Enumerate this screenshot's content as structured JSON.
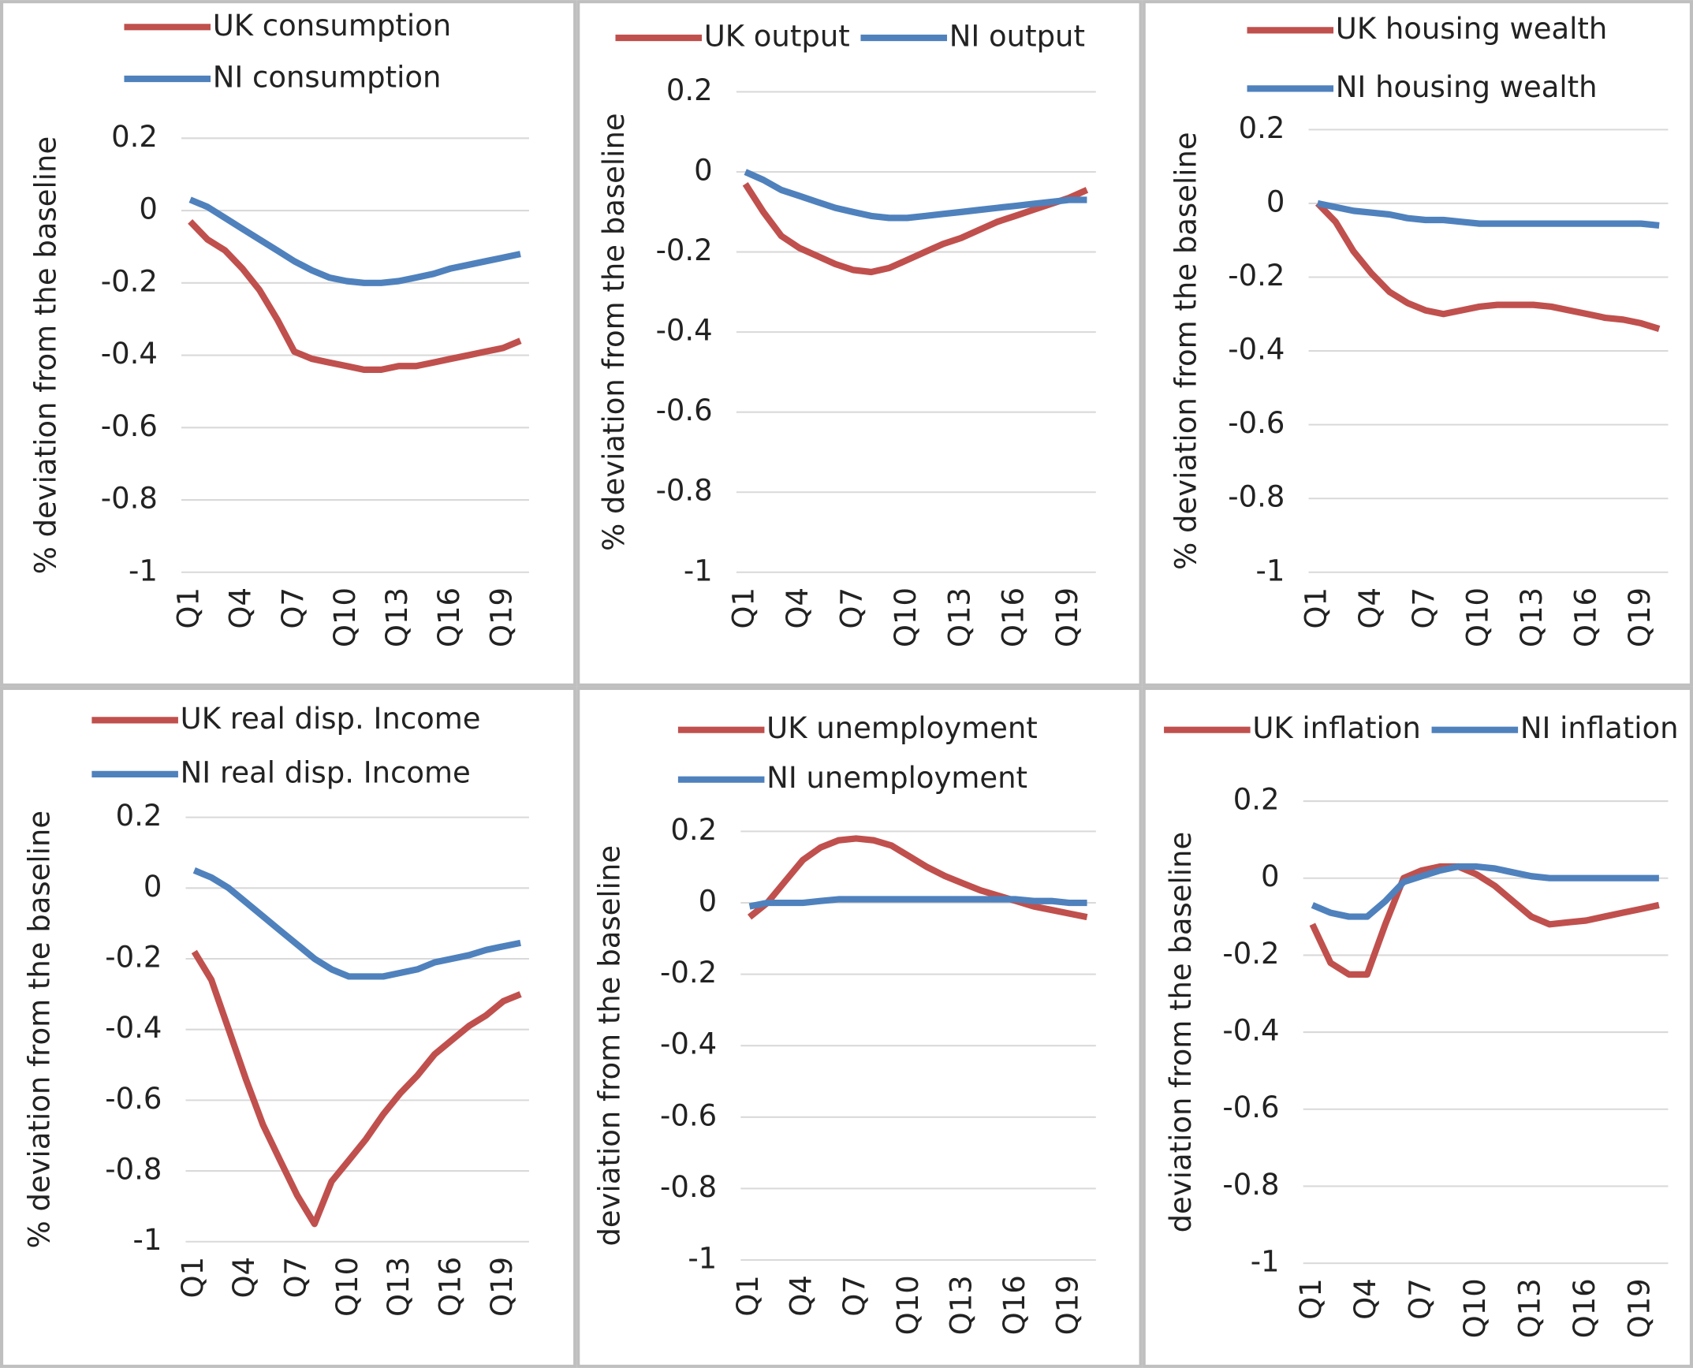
{
  "chart_data": [
    {
      "type": "line",
      "y_label": "% deviation from the baseline",
      "categories": [
        "Q1",
        null,
        null,
        "Q4",
        null,
        null,
        "Q7",
        null,
        null,
        "Q10",
        null,
        null,
        "Q13",
        null,
        null,
        "Q16",
        null,
        null,
        "Q19",
        null
      ],
      "series": [
        {
          "name": "UK consumption",
          "color": "#c0504d",
          "values": [
            -0.03,
            -0.08,
            -0.11,
            -0.16,
            -0.22,
            -0.3,
            -0.39,
            -0.41,
            -0.42,
            -0.43,
            -0.44,
            -0.44,
            -0.43,
            -0.43,
            -0.42,
            -0.41,
            -0.4,
            -0.39,
            -0.38,
            -0.36
          ]
        },
        {
          "name": "NI consumption",
          "color": "#4f81bd",
          "values": [
            0.03,
            0.01,
            -0.02,
            -0.05,
            -0.08,
            -0.11,
            -0.14,
            -0.165,
            -0.185,
            -0.195,
            -0.2,
            -0.2,
            -0.195,
            -0.185,
            -0.175,
            -0.16,
            -0.15,
            -0.14,
            -0.13,
            -0.12
          ]
        }
      ],
      "ylim": [
        -1,
        0.2
      ],
      "yticks": [
        -1,
        -0.8,
        -0.6,
        -0.4,
        -0.2,
        0,
        0.2
      ],
      "grid": true
    },
    {
      "type": "line",
      "y_label": "% deviation from the baseline",
      "categories": [
        "Q1",
        null,
        null,
        "Q4",
        null,
        null,
        "Q7",
        null,
        null,
        "Q10",
        null,
        null,
        "Q13",
        null,
        null,
        "Q16",
        null,
        null,
        "Q19",
        null
      ],
      "series": [
        {
          "name": "UK output",
          "color": "#c0504d",
          "values": [
            -0.03,
            -0.1,
            -0.16,
            -0.19,
            -0.21,
            -0.23,
            -0.245,
            -0.25,
            -0.24,
            -0.22,
            -0.2,
            -0.18,
            -0.165,
            -0.145,
            -0.125,
            -0.11,
            -0.095,
            -0.08,
            -0.065,
            -0.045
          ]
        },
        {
          "name": "NI output",
          "color": "#4f81bd",
          "values": [
            0,
            -0.02,
            -0.045,
            -0.06,
            -0.075,
            -0.09,
            -0.1,
            -0.11,
            -0.115,
            -0.115,
            -0.11,
            -0.105,
            -0.1,
            -0.095,
            -0.09,
            -0.085,
            -0.08,
            -0.075,
            -0.07,
            -0.07
          ]
        }
      ],
      "ylim": [
        -1,
        0.2
      ],
      "yticks": [
        -1,
        -0.8,
        -0.6,
        -0.4,
        -0.2,
        0,
        0.2
      ],
      "grid": true
    },
    {
      "type": "line",
      "y_label": "% deviation from the baseline",
      "categories": [
        "Q1",
        null,
        null,
        "Q4",
        null,
        null,
        "Q7",
        null,
        null,
        "Q10",
        null,
        null,
        "Q13",
        null,
        null,
        "Q16",
        null,
        null,
        "Q19",
        null
      ],
      "series": [
        {
          "name": "UK housing wealth",
          "color": "#c0504d",
          "values": [
            0,
            -0.05,
            -0.13,
            -0.19,
            -0.24,
            -0.27,
            -0.29,
            -0.3,
            -0.29,
            -0.28,
            -0.275,
            -0.275,
            -0.275,
            -0.28,
            -0.29,
            -0.3,
            -0.31,
            -0.315,
            -0.325,
            -0.34
          ]
        },
        {
          "name": "NI housing wealth",
          "color": "#4f81bd",
          "values": [
            0,
            -0.01,
            -0.02,
            -0.025,
            -0.03,
            -0.04,
            -0.045,
            -0.045,
            -0.05,
            -0.055,
            -0.055,
            -0.055,
            -0.055,
            -0.055,
            -0.055,
            -0.055,
            -0.055,
            -0.055,
            -0.055,
            -0.06
          ]
        }
      ],
      "ylim": [
        -1,
        0.2
      ],
      "yticks": [
        -1,
        -0.8,
        -0.6,
        -0.4,
        -0.2,
        0,
        0.2
      ],
      "grid": true
    },
    {
      "type": "line",
      "y_label": "% deviation from the baseline",
      "categories": [
        "Q1",
        null,
        null,
        "Q4",
        null,
        null,
        "Q7",
        null,
        null,
        "Q10",
        null,
        null,
        "Q13",
        null,
        null,
        "Q16",
        null,
        null,
        "Q19",
        null
      ],
      "series": [
        {
          "name": "UK real disp. Income",
          "color": "#c0504d",
          "values": [
            -0.18,
            -0.26,
            -0.4,
            -0.54,
            -0.67,
            -0.77,
            -0.87,
            -0.95,
            -0.83,
            -0.77,
            -0.71,
            -0.64,
            -0.58,
            -0.53,
            -0.47,
            -0.43,
            -0.39,
            -0.36,
            -0.32,
            -0.3
          ]
        },
        {
          "name": "NI real disp. Income",
          "color": "#4f81bd",
          "values": [
            0.05,
            0.03,
            0,
            -0.04,
            -0.08,
            -0.12,
            -0.16,
            -0.2,
            -0.23,
            -0.25,
            -0.25,
            -0.25,
            -0.24,
            -0.23,
            -0.21,
            -0.2,
            -0.19,
            -0.175,
            -0.165,
            -0.155
          ]
        }
      ],
      "ylim": [
        -1,
        0.2
      ],
      "yticks": [
        -1,
        -0.8,
        -0.6,
        -0.4,
        -0.2,
        0,
        0.2
      ],
      "grid": true
    },
    {
      "type": "line",
      "y_label": "deviation from the baseline",
      "categories": [
        "Q1",
        null,
        null,
        "Q4",
        null,
        null,
        "Q7",
        null,
        null,
        "Q10",
        null,
        null,
        "Q13",
        null,
        null,
        "Q16",
        null,
        null,
        "Q19",
        null
      ],
      "series": [
        {
          "name": "UK unemployment",
          "color": "#c0504d",
          "values": [
            -0.04,
            0,
            0.06,
            0.12,
            0.155,
            0.175,
            0.18,
            0.175,
            0.16,
            0.13,
            0.1,
            0.075,
            0.055,
            0.035,
            0.02,
            0.005,
            -0.01,
            -0.02,
            -0.03,
            -0.04
          ]
        },
        {
          "name": "NI unemployment",
          "color": "#4f81bd",
          "values": [
            -0.01,
            0,
            0,
            0,
            0.005,
            0.01,
            0.01,
            0.01,
            0.01,
            0.01,
            0.01,
            0.01,
            0.01,
            0.01,
            0.01,
            0.01,
            0.005,
            0.005,
            0,
            0
          ]
        }
      ],
      "ylim": [
        -1,
        0.2
      ],
      "yticks": [
        -1,
        -0.8,
        -0.6,
        -0.4,
        -0.2,
        0,
        0.2
      ],
      "grid": true
    },
    {
      "type": "line",
      "y_label": "deviation from the baseline",
      "categories": [
        "Q1",
        null,
        null,
        "Q4",
        null,
        null,
        "Q7",
        null,
        null,
        "Q10",
        null,
        null,
        "Q13",
        null,
        null,
        "Q16",
        null,
        null,
        "Q19",
        null
      ],
      "series": [
        {
          "name": "UK inflation",
          "color": "#c0504d",
          "values": [
            -0.12,
            -0.22,
            -0.25,
            -0.25,
            -0.12,
            0,
            0.02,
            0.03,
            0.03,
            0.01,
            -0.02,
            -0.06,
            -0.1,
            -0.12,
            -0.115,
            -0.11,
            -0.1,
            -0.09,
            -0.08,
            -0.07
          ]
        },
        {
          "name": "NI inflation",
          "color": "#4f81bd",
          "values": [
            -0.07,
            -0.09,
            -0.1,
            -0.1,
            -0.06,
            -0.01,
            0.005,
            0.02,
            0.03,
            0.03,
            0.025,
            0.015,
            0.005,
            0,
            0,
            0,
            0,
            0,
            0,
            0
          ]
        }
      ],
      "ylim": [
        -1,
        0.2
      ],
      "yticks": [
        -1,
        -0.8,
        -0.6,
        -0.4,
        -0.2,
        0,
        0.2
      ],
      "grid": true
    }
  ]
}
